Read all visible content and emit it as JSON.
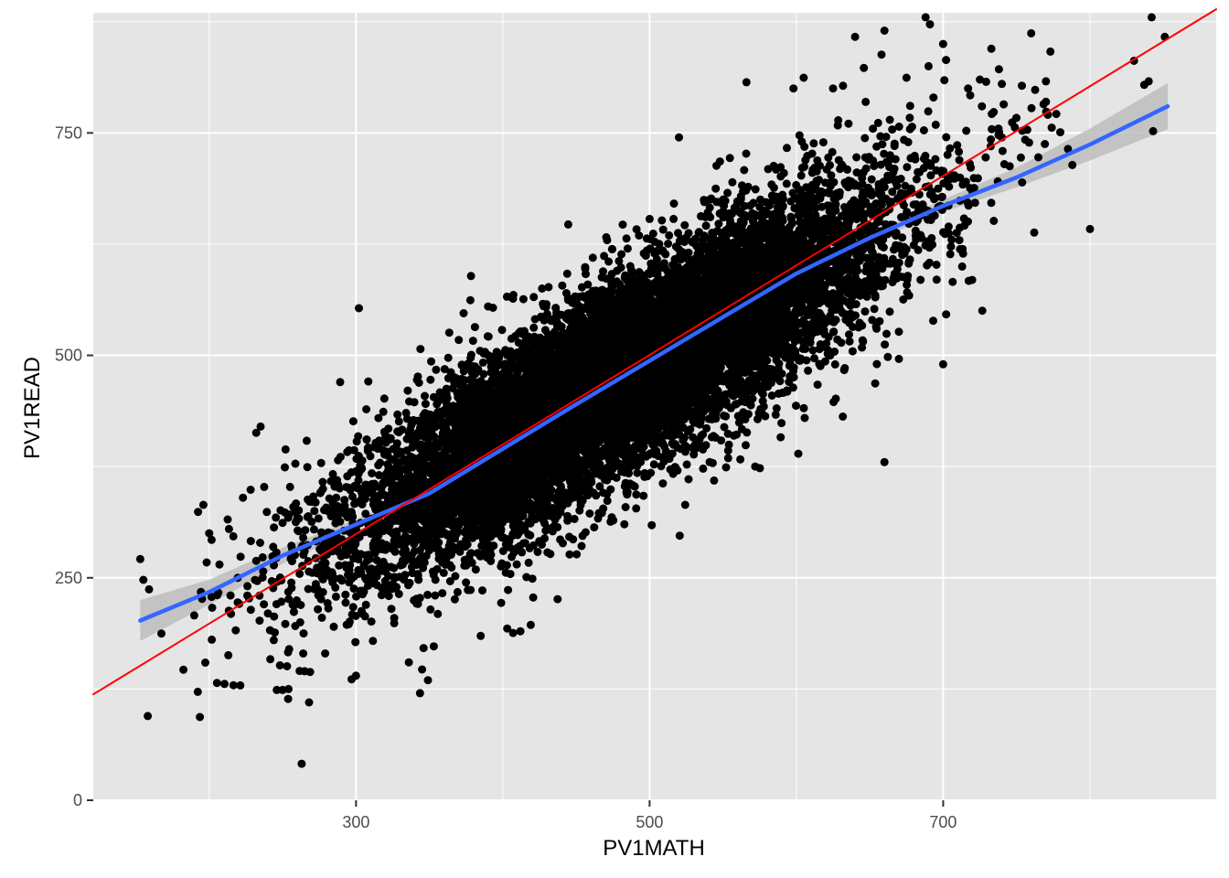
{
  "chart_data": {
    "type": "scatter",
    "title": "",
    "xlabel": "PV1MATH",
    "ylabel": "PV1READ",
    "xlim": [
      121,
      886
    ],
    "ylim": [
      0,
      885
    ],
    "x_ticks": [
      300,
      500,
      700
    ],
    "y_ticks": [
      0,
      250,
      500,
      750
    ],
    "x_tick_labels": [
      "300",
      "500",
      "700"
    ],
    "y_tick_labels": [
      "0",
      "250",
      "500",
      "750"
    ],
    "grid": true,
    "legend": "none",
    "scatter_summary": {
      "n_points_approx": 12000,
      "x_mean": 483,
      "x_sd": 90,
      "y_mean": 478,
      "y_sd": 100,
      "correlation": 0.84,
      "color": "#000000"
    },
    "outlier_points": {
      "x": [
        153,
        159,
        196,
        213,
        250,
        268,
        297,
        346,
        302,
        403,
        412,
        620,
        660,
        700,
        688,
        691,
        770,
        830,
        842,
        851,
        840,
        843,
        837,
        800,
        785,
        788,
        770,
        762,
        740,
        725,
        717,
        702,
        690,
        675,
        658,
        646,
        625,
        605,
        760,
        740,
        660,
        700,
        640,
        520,
        566,
        598,
        254,
        246,
        263,
        265,
        279,
        300,
        336,
        345,
        349,
        353,
        390,
        407,
        419,
        223,
        200,
        207,
        226,
        240,
        244,
        262,
        235,
        232
      ],
      "y": [
        271,
        237,
        332,
        163,
        124,
        110,
        136,
        171,
        553,
        193,
        190,
        600,
        380,
        490,
        880,
        872,
        808,
        831,
        880,
        858,
        808,
        752,
        804,
        642,
        732,
        714,
        785,
        638,
        745,
        810,
        800,
        832,
        825,
        812,
        838,
        823,
        800,
        812,
        862,
        805,
        865,
        850,
        858,
        745,
        807,
        800,
        125,
        124,
        41,
        145,
        165,
        140,
        155,
        147,
        135,
        173,
        555,
        188,
        197,
        340,
        300,
        265,
        230,
        210,
        180,
        200,
        420,
        413
      ],
      "color": "#000000"
    },
    "series": [
      {
        "type": "smooth",
        "color": "#3366FF",
        "x": [
          153,
          200,
          250,
          300,
          350,
          400,
          450,
          500,
          550,
          600,
          650,
          700,
          750,
          800,
          853
        ],
        "y": [
          202,
          234,
          275,
          310,
          345,
          395,
          445,
          494,
          543,
          592,
          632,
          668,
          700,
          737,
          780
        ],
        "band_upper": [
          225,
          248,
          284,
          316,
          350,
          399,
          449,
          497,
          546,
          595,
          637,
          675,
          711,
          755,
          806
        ],
        "band_lower": [
          179,
          220,
          266,
          304,
          340,
          391,
          441,
          491,
          540,
          589,
          627,
          661,
          689,
          719,
          754
        ],
        "band_color": "#bdbdbd"
      },
      {
        "type": "reference-line",
        "color": "#FF0000",
        "x": [
          121,
          886
        ],
        "y": [
          119,
          889
        ]
      }
    ],
    "colors": {
      "panel_bg": "#e5e5e5",
      "gridline": "#ffffff",
      "tick_text": "#4d4d4d",
      "tick_mark": "#333333"
    }
  }
}
